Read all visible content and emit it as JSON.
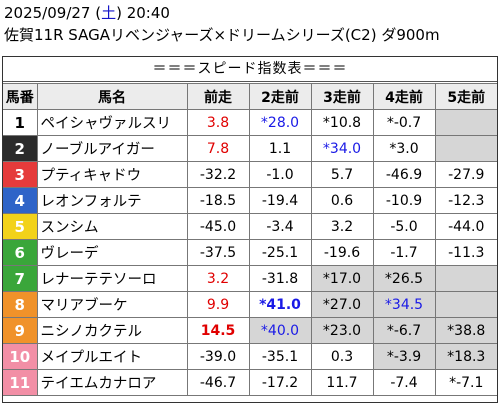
{
  "header": {
    "date_prefix": "2025/09/27 (",
    "weekday": "土",
    "date_suffix": ") 20:40",
    "race": "佐賀11R SAGAリベンジャーズ×ドリームシリーズ(C2) ダ900m"
  },
  "banner": "＝＝＝スピード指数表＝＝＝",
  "columns": [
    "馬番",
    "馬名",
    "前走",
    "2走前",
    "3走前",
    "4走前",
    "5走前"
  ],
  "colors": {
    "red": "#e00000",
    "blue": "#1a1ae6",
    "gray_cell": "#d6d6d6"
  },
  "rows": [
    {
      "num": "1",
      "num_bg": "#ffffff",
      "num_fg": "#000000",
      "name": "ペイシャヴァルスリ",
      "cells": [
        {
          "v": "3.8",
          "c": "red"
        },
        {
          "v": "*28.0",
          "c": "blue"
        },
        {
          "v": "*10.8"
        },
        {
          "v": "*-0.7"
        },
        {
          "v": "",
          "g": true
        }
      ]
    },
    {
      "num": "2",
      "num_bg": "#2b2b2b",
      "num_fg": "#ffffff",
      "name": "ノーブルアイガー",
      "cells": [
        {
          "v": "7.8",
          "c": "red"
        },
        {
          "v": "1.1"
        },
        {
          "v": "*34.0",
          "c": "blue"
        },
        {
          "v": "*3.0"
        },
        {
          "v": "",
          "g": true
        }
      ]
    },
    {
      "num": "3",
      "num_bg": "#e53b3b",
      "num_fg": "#ffffff",
      "name": "プティキャドウ",
      "cells": [
        {
          "v": "-32.2"
        },
        {
          "v": "-1.0"
        },
        {
          "v": "5.7"
        },
        {
          "v": "-46.9"
        },
        {
          "v": "-27.9"
        }
      ]
    },
    {
      "num": "4",
      "num_bg": "#2f64c8",
      "num_fg": "#ffffff",
      "name": "レオンフォルテ",
      "cells": [
        {
          "v": "-18.5"
        },
        {
          "v": "-19.4"
        },
        {
          "v": "0.6"
        },
        {
          "v": "-10.9"
        },
        {
          "v": "-12.3"
        }
      ]
    },
    {
      "num": "5",
      "num_bg": "#f2d21a",
      "num_fg": "#ffffff",
      "name": "スンシム",
      "cells": [
        {
          "v": "-45.0"
        },
        {
          "v": "-3.4"
        },
        {
          "v": "3.2"
        },
        {
          "v": "-5.0"
        },
        {
          "v": "-44.0"
        }
      ]
    },
    {
      "num": "6",
      "num_bg": "#3aa63a",
      "num_fg": "#ffffff",
      "name": "ヴレーデ",
      "cells": [
        {
          "v": "-37.5"
        },
        {
          "v": "-25.1"
        },
        {
          "v": "-19.6"
        },
        {
          "v": "-1.7"
        },
        {
          "v": "-11.3"
        }
      ]
    },
    {
      "num": "7",
      "num_bg": "#3aa63a",
      "num_fg": "#ffffff",
      "name": "レナーテテソーロ",
      "cells": [
        {
          "v": "3.2",
          "c": "red"
        },
        {
          "v": "-31.8"
        },
        {
          "v": "*17.0",
          "g": true
        },
        {
          "v": "*26.5",
          "g": true
        },
        {
          "v": "",
          "g": true
        }
      ]
    },
    {
      "num": "8",
      "num_bg": "#f0922a",
      "num_fg": "#ffffff",
      "name": "マリアブーケ",
      "cells": [
        {
          "v": "9.9",
          "c": "red"
        },
        {
          "v": "*41.0",
          "c": "blue",
          "b": true
        },
        {
          "v": "*27.0",
          "g": true
        },
        {
          "v": "*34.5",
          "c": "blue",
          "g": true
        },
        {
          "v": "",
          "g": true
        }
      ]
    },
    {
      "num": "9",
      "num_bg": "#f0922a",
      "num_fg": "#ffffff",
      "name": "ニシノカクテル",
      "cells": [
        {
          "v": "14.5",
          "c": "red",
          "b": true
        },
        {
          "v": "*40.0",
          "c": "blue",
          "g": true
        },
        {
          "v": "*23.0",
          "g": true
        },
        {
          "v": "*-6.7",
          "g": true
        },
        {
          "v": "*38.8",
          "g": true
        }
      ]
    },
    {
      "num": "10",
      "num_bg": "#f28fa6",
      "num_fg": "#ffffff",
      "name": "メイプルエイト",
      "cells": [
        {
          "v": "-39.0"
        },
        {
          "v": "-35.1"
        },
        {
          "v": "0.3"
        },
        {
          "v": "*-3.9",
          "g": true
        },
        {
          "v": "*18.3",
          "g": true
        }
      ]
    },
    {
      "num": "11",
      "num_bg": "#f28fa6",
      "num_fg": "#ffffff",
      "name": "テイエムカナロア",
      "cells": [
        {
          "v": "-46.7"
        },
        {
          "v": "-17.2"
        },
        {
          "v": "11.7"
        },
        {
          "v": "-7.4"
        },
        {
          "v": "*-7.1"
        }
      ]
    }
  ]
}
